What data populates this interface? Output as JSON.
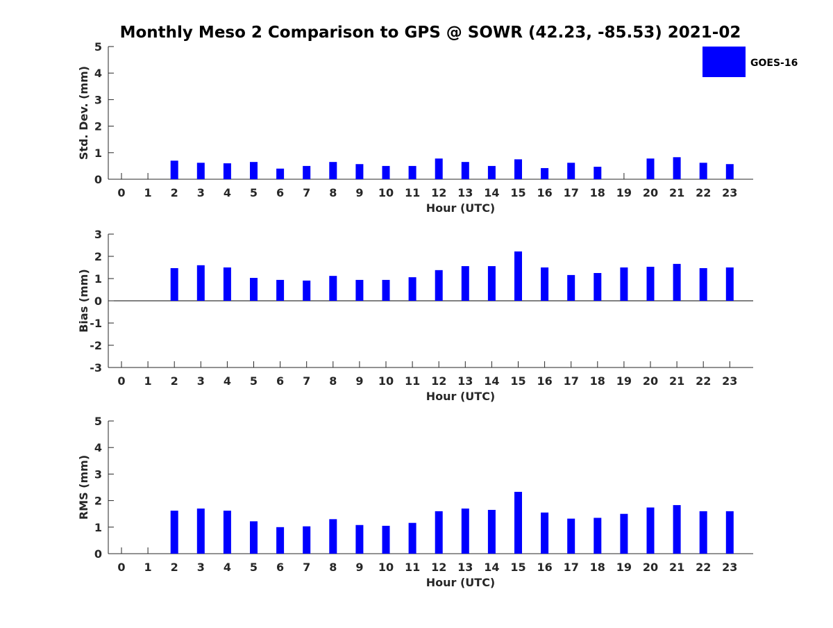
{
  "title": "Monthly Meso 2 Comparison to GPS @ SOWR (42.23, -85.53) 2021-02",
  "legend": {
    "label": "GOES-16",
    "color": "#0000ff",
    "placement": "top-right"
  },
  "chart_data": [
    {
      "type": "bar",
      "ylabel": "Std. Dev. (mm)",
      "xlabel": "Hour (UTC)",
      "ylim": [
        0,
        5
      ],
      "yticks": [
        "0",
        "1",
        "2",
        "3",
        "4",
        "5"
      ],
      "categories": [
        "0",
        "1",
        "2",
        "3",
        "4",
        "5",
        "6",
        "7",
        "8",
        "9",
        "10",
        "11",
        "12",
        "13",
        "14",
        "15",
        "16",
        "17",
        "18",
        "19",
        "20",
        "21",
        "22",
        "23"
      ],
      "series": [
        {
          "name": "GOES-16",
          "values": [
            null,
            null,
            0.7,
            0.62,
            0.6,
            0.65,
            0.4,
            0.5,
            0.65,
            0.57,
            0.5,
            0.5,
            0.78,
            0.65,
            0.5,
            0.75,
            0.42,
            0.62,
            0.47,
            null,
            0.78,
            0.83,
            0.62,
            0.57
          ]
        }
      ]
    },
    {
      "type": "bar",
      "ylabel": "Bias (mm)",
      "xlabel": "Hour (UTC)",
      "ylim": [
        -3,
        3
      ],
      "yticks": [
        "-3",
        "-2",
        "-1",
        "0",
        "1",
        "2",
        "3"
      ],
      "categories": [
        "0",
        "1",
        "2",
        "3",
        "4",
        "5",
        "6",
        "7",
        "8",
        "9",
        "10",
        "11",
        "12",
        "13",
        "14",
        "15",
        "16",
        "17",
        "18",
        "19",
        "20",
        "21",
        "22",
        "23"
      ],
      "series": [
        {
          "name": "GOES-16",
          "values": [
            null,
            null,
            1.47,
            1.6,
            1.5,
            1.03,
            0.94,
            0.91,
            1.12,
            0.94,
            0.94,
            1.06,
            1.38,
            1.56,
            1.56,
            2.22,
            1.5,
            1.16,
            1.25,
            1.5,
            1.53,
            1.66,
            1.47,
            1.5
          ]
        }
      ]
    },
    {
      "type": "bar",
      "ylabel": "RMS (mm)",
      "xlabel": "Hour (UTC)",
      "ylim": [
        0,
        5
      ],
      "yticks": [
        "0",
        "1",
        "2",
        "3",
        "4",
        "5"
      ],
      "categories": [
        "0",
        "1",
        "2",
        "3",
        "4",
        "5",
        "6",
        "7",
        "8",
        "9",
        "10",
        "11",
        "12",
        "13",
        "14",
        "15",
        "16",
        "17",
        "18",
        "19",
        "20",
        "21",
        "22",
        "23"
      ],
      "series": [
        {
          "name": "GOES-16",
          "values": [
            null,
            null,
            1.62,
            1.7,
            1.62,
            1.22,
            1.0,
            1.03,
            1.3,
            1.08,
            1.05,
            1.16,
            1.6,
            1.7,
            1.65,
            2.33,
            1.55,
            1.32,
            1.35,
            1.5,
            1.74,
            1.83,
            1.6,
            1.6
          ]
        }
      ]
    }
  ]
}
